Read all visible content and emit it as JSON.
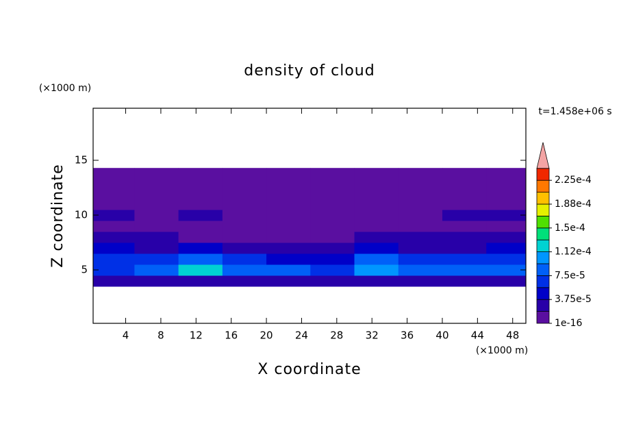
{
  "chart_data": {
    "type": "contour",
    "title": "density of cloud",
    "x_label": "X coordinate",
    "y_label": "Z coordinate",
    "x_unit": "(×1000 m)",
    "y_unit": "(×1000 m)",
    "time_label": "t=1.458e+06 s",
    "xlim": [
      0.3,
      49.5
    ],
    "ylim": [
      0.125,
      19.75
    ],
    "xticks": [
      4,
      8,
      12,
      16,
      20,
      24,
      28,
      32,
      36,
      40,
      44,
      48
    ],
    "yticks": [
      5,
      10,
      15
    ],
    "x_edges": [
      0.3,
      5,
      10,
      15,
      20,
      25,
      30,
      35,
      40,
      45,
      49.5
    ],
    "z_edges": [
      3.5,
      4.5,
      5.5,
      6.5,
      7.5,
      8.5,
      9.5,
      10.5,
      11.5,
      12.5,
      13.5,
      14.3
    ],
    "field": [
      [
        2.5e-05,
        3e-05,
        3.5e-05,
        2.5e-05,
        2e-05,
        2e-05,
        3.5e-05,
        3e-05,
        2.5e-05,
        2.5e-05
      ],
      [
        7e-05,
        9e-05,
        0.000115,
        8e-05,
        8.5e-05,
        7e-05,
        0.00011,
        9e-05,
        8e-05,
        7.5e-05
      ],
      [
        6e-05,
        6.5e-05,
        9e-05,
        7e-05,
        5e-05,
        4e-05,
        8e-05,
        6e-05,
        6e-05,
        6.5e-05
      ],
      [
        4e-05,
        3.5e-05,
        4.5e-05,
        3e-05,
        3e-05,
        3.5e-05,
        4e-05,
        3e-05,
        3e-05,
        4e-05
      ],
      [
        2e-05,
        2e-05,
        1.5e-05,
        1e-05,
        1e-05,
        1.5e-05,
        2e-05,
        2e-05,
        2.5e-05,
        2e-05
      ],
      [
        1.5e-05,
        1e-05,
        1e-05,
        1e-05,
        1e-05,
        1e-05,
        1.5e-05,
        1.5e-05,
        1.5e-05,
        1.5e-05
      ],
      [
        2e-05,
        1e-05,
        2e-05,
        1.5e-05,
        1e-05,
        1e-05,
        1e-05,
        1e-05,
        2e-05,
        2e-05
      ],
      [
        5e-06,
        5e-06,
        5e-06,
        5e-06,
        5e-06,
        5e-06,
        5e-06,
        5e-06,
        5e-06,
        5e-06
      ],
      [
        5e-06,
        5e-06,
        5e-06,
        5e-06,
        5e-06,
        5e-06,
        5e-06,
        5e-06,
        5e-06,
        5e-06
      ],
      [
        5e-06,
        5e-06,
        5e-06,
        5e-06,
        5e-06,
        5e-06,
        5e-06,
        5e-06,
        5e-06,
        5e-06
      ],
      [
        5e-06,
        5e-06,
        5e-06,
        5e-06,
        5e-06,
        5e-06,
        5e-06,
        5e-06,
        5e-06,
        5e-06
      ]
    ],
    "levels": [
      1e-16,
      1.875e-05,
      3.75e-05,
      5.625e-05,
      7.5e-05,
      9.375e-05,
      0.0001125,
      0.00013125,
      0.00015,
      0.00016875,
      0.0001875,
      0.00020625,
      0.000225
    ],
    "colors": [
      "#5a0fa0",
      "#2800a8",
      "#0000c8",
      "#0030e6",
      "#0060f8",
      "#0096ff",
      "#00d2d2",
      "#00e07a",
      "#50e000",
      "#e6f000",
      "#ffc000",
      "#ff7800",
      "#f02800"
    ],
    "over_color": "#f4a4a4",
    "colorbar_ticks": [
      {
        "value": 1e-16,
        "label": "1e-16"
      },
      {
        "value": 3.75e-05,
        "label": "3.75e-5"
      },
      {
        "value": 7.5e-05,
        "label": "7.5e-5"
      },
      {
        "value": 0.0001125,
        "label": "1.12e-4"
      },
      {
        "value": 0.00015,
        "label": "1.5e-4"
      },
      {
        "value": 0.0001875,
        "label": "1.88e-4"
      },
      {
        "value": 0.000225,
        "label": "2.25e-4"
      }
    ]
  }
}
